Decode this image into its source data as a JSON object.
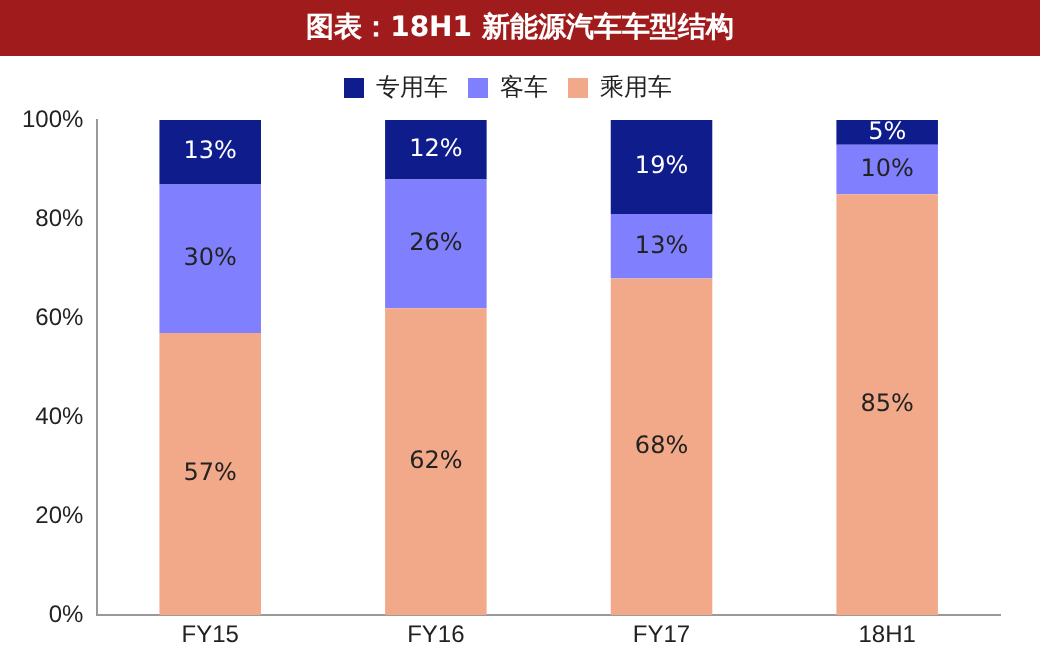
{
  "chart_data": {
    "type": "bar",
    "title": "图表：18H1 新能源汽车车型结构",
    "categories": [
      "FY15",
      "FY16",
      "FY17",
      "18H1"
    ],
    "stacked": true,
    "series": [
      {
        "name": "乘用车",
        "color": "#f2a98a",
        "values": [
          57,
          62,
          68,
          85
        ],
        "value_labels": [
          "57%",
          "62%",
          "68%",
          "85%"
        ]
      },
      {
        "name": "客车",
        "color": "#8080ff",
        "values": [
          30,
          26,
          13,
          10
        ],
        "value_labels": [
          "30%",
          "26%",
          "13%",
          "10%"
        ]
      },
      {
        "name": "专用车",
        "color": "#0e1c8c",
        "values": [
          13,
          12,
          19,
          5
        ],
        "value_labels": [
          "13%",
          "12%",
          "19%",
          "5%"
        ]
      }
    ],
    "ylim": [
      0,
      100
    ],
    "yticks": [
      {
        "value": 0,
        "label": "0%"
      },
      {
        "value": 20,
        "label": "20%"
      },
      {
        "value": 40,
        "label": "40%"
      },
      {
        "value": 60,
        "label": "60%"
      },
      {
        "value": 80,
        "label": "80%"
      },
      {
        "value": 100,
        "label": "100%"
      }
    ],
    "grid": false,
    "legend": "top"
  }
}
